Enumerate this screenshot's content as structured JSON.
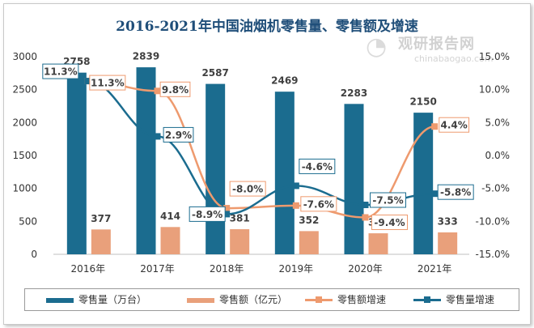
{
  "chart_data": {
    "type": "bar",
    "title": "2016-2021年中国油烟机零售量、零售额及增速",
    "categories": [
      "2016年",
      "2017年",
      "2018年",
      "2019年",
      "2020年",
      "2021年"
    ],
    "series": [
      {
        "name": "零售量（万台）",
        "type": "bar",
        "axis": "left",
        "color": "#1b6c8f",
        "values": [
          2758,
          2839,
          2587,
          2469,
          2283,
          2150
        ]
      },
      {
        "name": "零售额（亿元）",
        "type": "bar",
        "axis": "left",
        "color": "#e9a07b",
        "values": [
          377,
          414,
          381,
          352,
          319,
          333
        ]
      },
      {
        "name": "零售额增速",
        "type": "line",
        "axis": "right",
        "color": "#ee9a6e",
        "values": [
          11.3,
          9.8,
          -8.0,
          -7.6,
          -9.4,
          4.4
        ]
      },
      {
        "name": "零售量增速",
        "type": "line",
        "axis": "right",
        "color": "#1b6c8f",
        "values": [
          11.3,
          2.9,
          -8.9,
          -4.6,
          -7.5,
          -5.8
        ]
      }
    ],
    "left_ticks": [
      "0",
      "500",
      "1000",
      "1500",
      "2000",
      "2500",
      "3000"
    ],
    "right_ticks": [
      "-15.0%",
      "-10.0%",
      "-5.0%",
      "0.0%",
      "5.0%",
      "10.0%",
      "15.0%"
    ],
    "ylim_left": [
      0,
      3000
    ],
    "ylim_right": [
      -15,
      15
    ],
    "legend_position": "bottom",
    "grid": false
  },
  "watermark": {
    "name": "观研报告网",
    "url": "chinabaogao.com",
    "icon": "chart-logo-icon"
  }
}
